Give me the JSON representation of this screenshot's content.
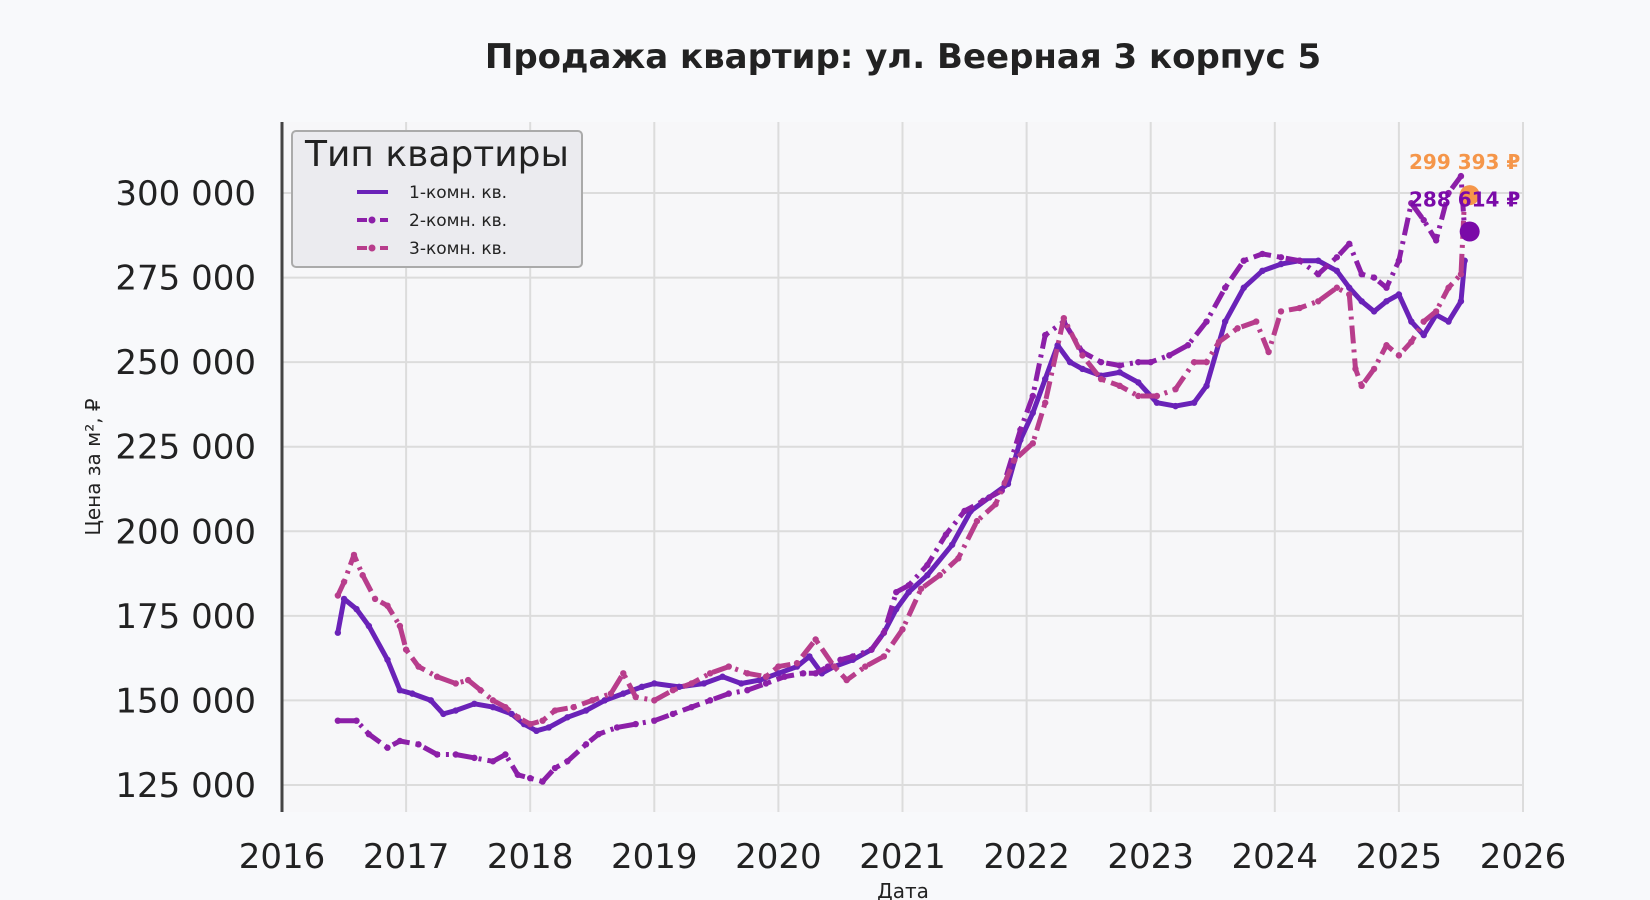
{
  "chart_data": {
    "type": "line",
    "title": "Продажа квартир: ул. Веерная 3 корпус 5",
    "xlabel": "Дата",
    "ylabel": "Цена за м², ₽",
    "xlim": [
      2016.0,
      2026.0
    ],
    "ylim": [
      117000,
      321000
    ],
    "x_ticks": [
      2016,
      2017,
      2018,
      2019,
      2020,
      2021,
      2022,
      2023,
      2024,
      2025,
      2026
    ],
    "x_tick_labels": [
      "2016",
      "2017",
      "2018",
      "2019",
      "2020",
      "2021",
      "2022",
      "2023",
      "2024",
      "2025",
      "2026"
    ],
    "y_ticks": [
      125000,
      150000,
      175000,
      200000,
      225000,
      250000,
      275000,
      300000
    ],
    "y_tick_labels": [
      "125 000",
      "150 000",
      "175 000",
      "200 000",
      "225 000",
      "250 000",
      "275 000",
      "300 000"
    ],
    "grid": true,
    "legend": {
      "title": "Тип квартиры",
      "placement": "top-left"
    },
    "series": [
      {
        "name": "1-комн. кв.",
        "color": "#6a22b8",
        "style": "solid",
        "x": [
          2016.45,
          2016.5,
          2016.6,
          2016.7,
          2016.85,
          2016.95,
          2017.05,
          2017.2,
          2017.3,
          2017.4,
          2017.55,
          2017.7,
          2017.85,
          2017.95,
          2018.05,
          2018.15,
          2018.3,
          2018.45,
          2018.6,
          2018.75,
          2018.9,
          2019.0,
          2019.2,
          2019.4,
          2019.55,
          2019.7,
          2019.85,
          2020.0,
          2020.15,
          2020.25,
          2020.35,
          2020.45,
          2020.6,
          2020.75,
          2020.85,
          2020.95,
          2021.05,
          2021.2,
          2021.4,
          2021.55,
          2021.7,
          2021.85,
          2021.95,
          2022.05,
          2022.15,
          2022.25,
          2022.35,
          2022.45,
          2022.6,
          2022.75,
          2022.9,
          2023.05,
          2023.2,
          2023.35,
          2023.45,
          2023.6,
          2023.75,
          2023.9,
          2024.05,
          2024.2,
          2024.35,
          2024.5,
          2024.6,
          2024.7,
          2024.8,
          2024.9,
          2025.0,
          2025.1,
          2025.2,
          2025.3,
          2025.4,
          2025.5,
          2025.53
        ],
        "y": [
          170000,
          180000,
          177000,
          172000,
          162000,
          153000,
          152000,
          150000,
          146000,
          147000,
          149000,
          148000,
          146000,
          143000,
          141000,
          142000,
          145000,
          147000,
          150000,
          152000,
          154000,
          155000,
          154000,
          155000,
          157000,
          155000,
          156000,
          158000,
          160000,
          163000,
          158000,
          160000,
          162000,
          165000,
          170000,
          177000,
          182000,
          187000,
          196000,
          206000,
          210000,
          214000,
          227000,
          235000,
          245000,
          255000,
          250000,
          248000,
          246000,
          247000,
          244000,
          238000,
          237000,
          238000,
          243000,
          262000,
          272000,
          277000,
          279000,
          280000,
          280000,
          277000,
          272000,
          268000,
          265000,
          268000,
          270000,
          262000,
          258000,
          264000,
          262000,
          268000,
          280000
        ]
      },
      {
        "name": "2-комн. кв.",
        "color": "#8c1fa8",
        "style": "dashdot",
        "x": [
          2016.45,
          2016.6,
          2016.7,
          2016.85,
          2016.95,
          2017.1,
          2017.25,
          2017.4,
          2017.55,
          2017.7,
          2017.8,
          2017.9,
          2018.0,
          2018.1,
          2018.2,
          2018.3,
          2018.45,
          2018.55,
          2018.7,
          2018.85,
          2019.0,
          2019.15,
          2019.3,
          2019.45,
          2019.6,
          2019.75,
          2019.9,
          2020.05,
          2020.2,
          2020.3,
          2020.4,
          2020.5,
          2020.6,
          2020.75,
          2020.85,
          2020.95,
          2021.05,
          2021.2,
          2021.35,
          2021.5,
          2021.65,
          2021.8,
          2021.95,
          2022.05,
          2022.15,
          2022.3,
          2022.45,
          2022.6,
          2022.75,
          2022.9,
          2023.0,
          2023.15,
          2023.3,
          2023.45,
          2023.6,
          2023.75,
          2023.9,
          2024.05,
          2024.2,
          2024.35,
          2024.5,
          2024.6,
          2024.7,
          2024.8,
          2024.9,
          2025.0,
          2025.1,
          2025.2,
          2025.3,
          2025.4,
          2025.5,
          2025.53
        ],
        "y": [
          144000,
          144000,
          140000,
          136000,
          138000,
          137000,
          134000,
          134000,
          133000,
          132000,
          134000,
          128000,
          127000,
          126000,
          130000,
          132000,
          137000,
          140000,
          142000,
          143000,
          144000,
          146000,
          148000,
          150000,
          152000,
          153000,
          155000,
          157000,
          158000,
          158000,
          160000,
          162000,
          163000,
          165000,
          170000,
          182000,
          184000,
          190000,
          199000,
          206000,
          209000,
          212000,
          230000,
          240000,
          258000,
          262000,
          253000,
          250000,
          249000,
          250000,
          250000,
          252000,
          255000,
          262000,
          272000,
          280000,
          282000,
          281000,
          280000,
          276000,
          281000,
          285000,
          276000,
          275000,
          272000,
          280000,
          297000,
          292000,
          286000,
          300000,
          305000,
          288614
        ]
      },
      {
        "name": "3-комн. кв.",
        "color": "#b83d8c",
        "style": "dashdot",
        "x": [
          2016.45,
          2016.5,
          2016.58,
          2016.65,
          2016.75,
          2016.85,
          2016.95,
          2017.0,
          2017.1,
          2017.25,
          2017.4,
          2017.5,
          2017.6,
          2017.7,
          2017.8,
          2017.9,
          2018.0,
          2018.1,
          2018.2,
          2018.35,
          2018.5,
          2018.65,
          2018.75,
          2018.85,
          2019.0,
          2019.15,
          2019.3,
          2019.45,
          2019.6,
          2019.75,
          2019.9,
          2020.0,
          2020.15,
          2020.3,
          2020.45,
          2020.55,
          2020.7,
          2020.85,
          2021.0,
          2021.15,
          2021.3,
          2021.45,
          2021.6,
          2021.75,
          2021.9,
          2022.05,
          2022.15,
          2022.3,
          2022.45,
          2022.6,
          2022.75,
          2022.9,
          2023.05,
          2023.2,
          2023.35,
          2023.45,
          2023.55,
          2023.7,
          2023.85,
          2023.95,
          2024.05,
          2024.2,
          2024.35,
          2024.5,
          2024.6,
          2024.65,
          2024.7,
          2024.8,
          2024.9,
          2025.0,
          2025.1,
          2025.2,
          2025.3,
          2025.4,
          2025.5,
          2025.53
        ],
        "y": [
          181000,
          185000,
          193000,
          187000,
          180000,
          178000,
          172000,
          165000,
          160000,
          157000,
          155000,
          156000,
          153000,
          150000,
          148000,
          145000,
          143000,
          144000,
          147000,
          148000,
          150000,
          152000,
          158000,
          151000,
          150000,
          153000,
          155000,
          158000,
          160000,
          158000,
          157000,
          160000,
          161000,
          168000,
          160000,
          156000,
          160000,
          163000,
          171000,
          183000,
          187000,
          192000,
          203000,
          208000,
          221000,
          226000,
          238000,
          263000,
          252000,
          245000,
          243000,
          240000,
          240000,
          242000,
          250000,
          250000,
          256000,
          260000,
          262000,
          253000,
          265000,
          266000,
          268000,
          272000,
          270000,
          248000,
          243000,
          248000,
          255000,
          252000,
          256000,
          262000,
          265000,
          272000,
          276000,
          299393
        ]
      }
    ],
    "annotations": [
      {
        "label": "299 393 ₽",
        "x": 2025.53,
        "y": 299393,
        "color": "#f5964a"
      },
      {
        "label": "288 614 ₽",
        "x": 2025.53,
        "y": 288614,
        "color": "#7a0aa8"
      }
    ]
  }
}
